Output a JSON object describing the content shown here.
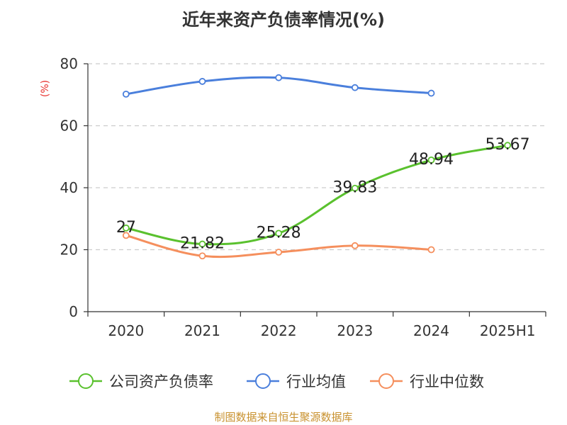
{
  "title": "近年来资产负债率情况(%)",
  "source": "制图数据来自恒生聚源数据库",
  "chart_data": {
    "type": "line",
    "title": "近年来资产负债率情况(%)",
    "ylabel": "(%)",
    "xlabel": "",
    "ylim": [
      0,
      80
    ],
    "yticks": [
      "0",
      "20",
      "40",
      "60",
      "80"
    ],
    "categories": [
      "2020",
      "2021",
      "2022",
      "2023",
      "2024",
      "2025H1"
    ],
    "grid": "horizontal dashed",
    "legend_position": "bottom",
    "series": [
      {
        "name": "公司资产负债率",
        "color": "#5ac12e",
        "values": [
          27,
          21.82,
          25.28,
          39.83,
          48.94,
          53.67
        ],
        "labels": [
          "27",
          "21.82",
          "25.28",
          "39.83",
          "48.94",
          "53.67"
        ]
      },
      {
        "name": "行业均值",
        "color": "#4a7fdc",
        "values": [
          70.2,
          74.3,
          75.5,
          72.3,
          70.5,
          null
        ]
      },
      {
        "name": "行业中位数",
        "color": "#f58f5d",
        "values": [
          24.6,
          18.0,
          19.2,
          21.3,
          20.0,
          null
        ]
      }
    ]
  }
}
